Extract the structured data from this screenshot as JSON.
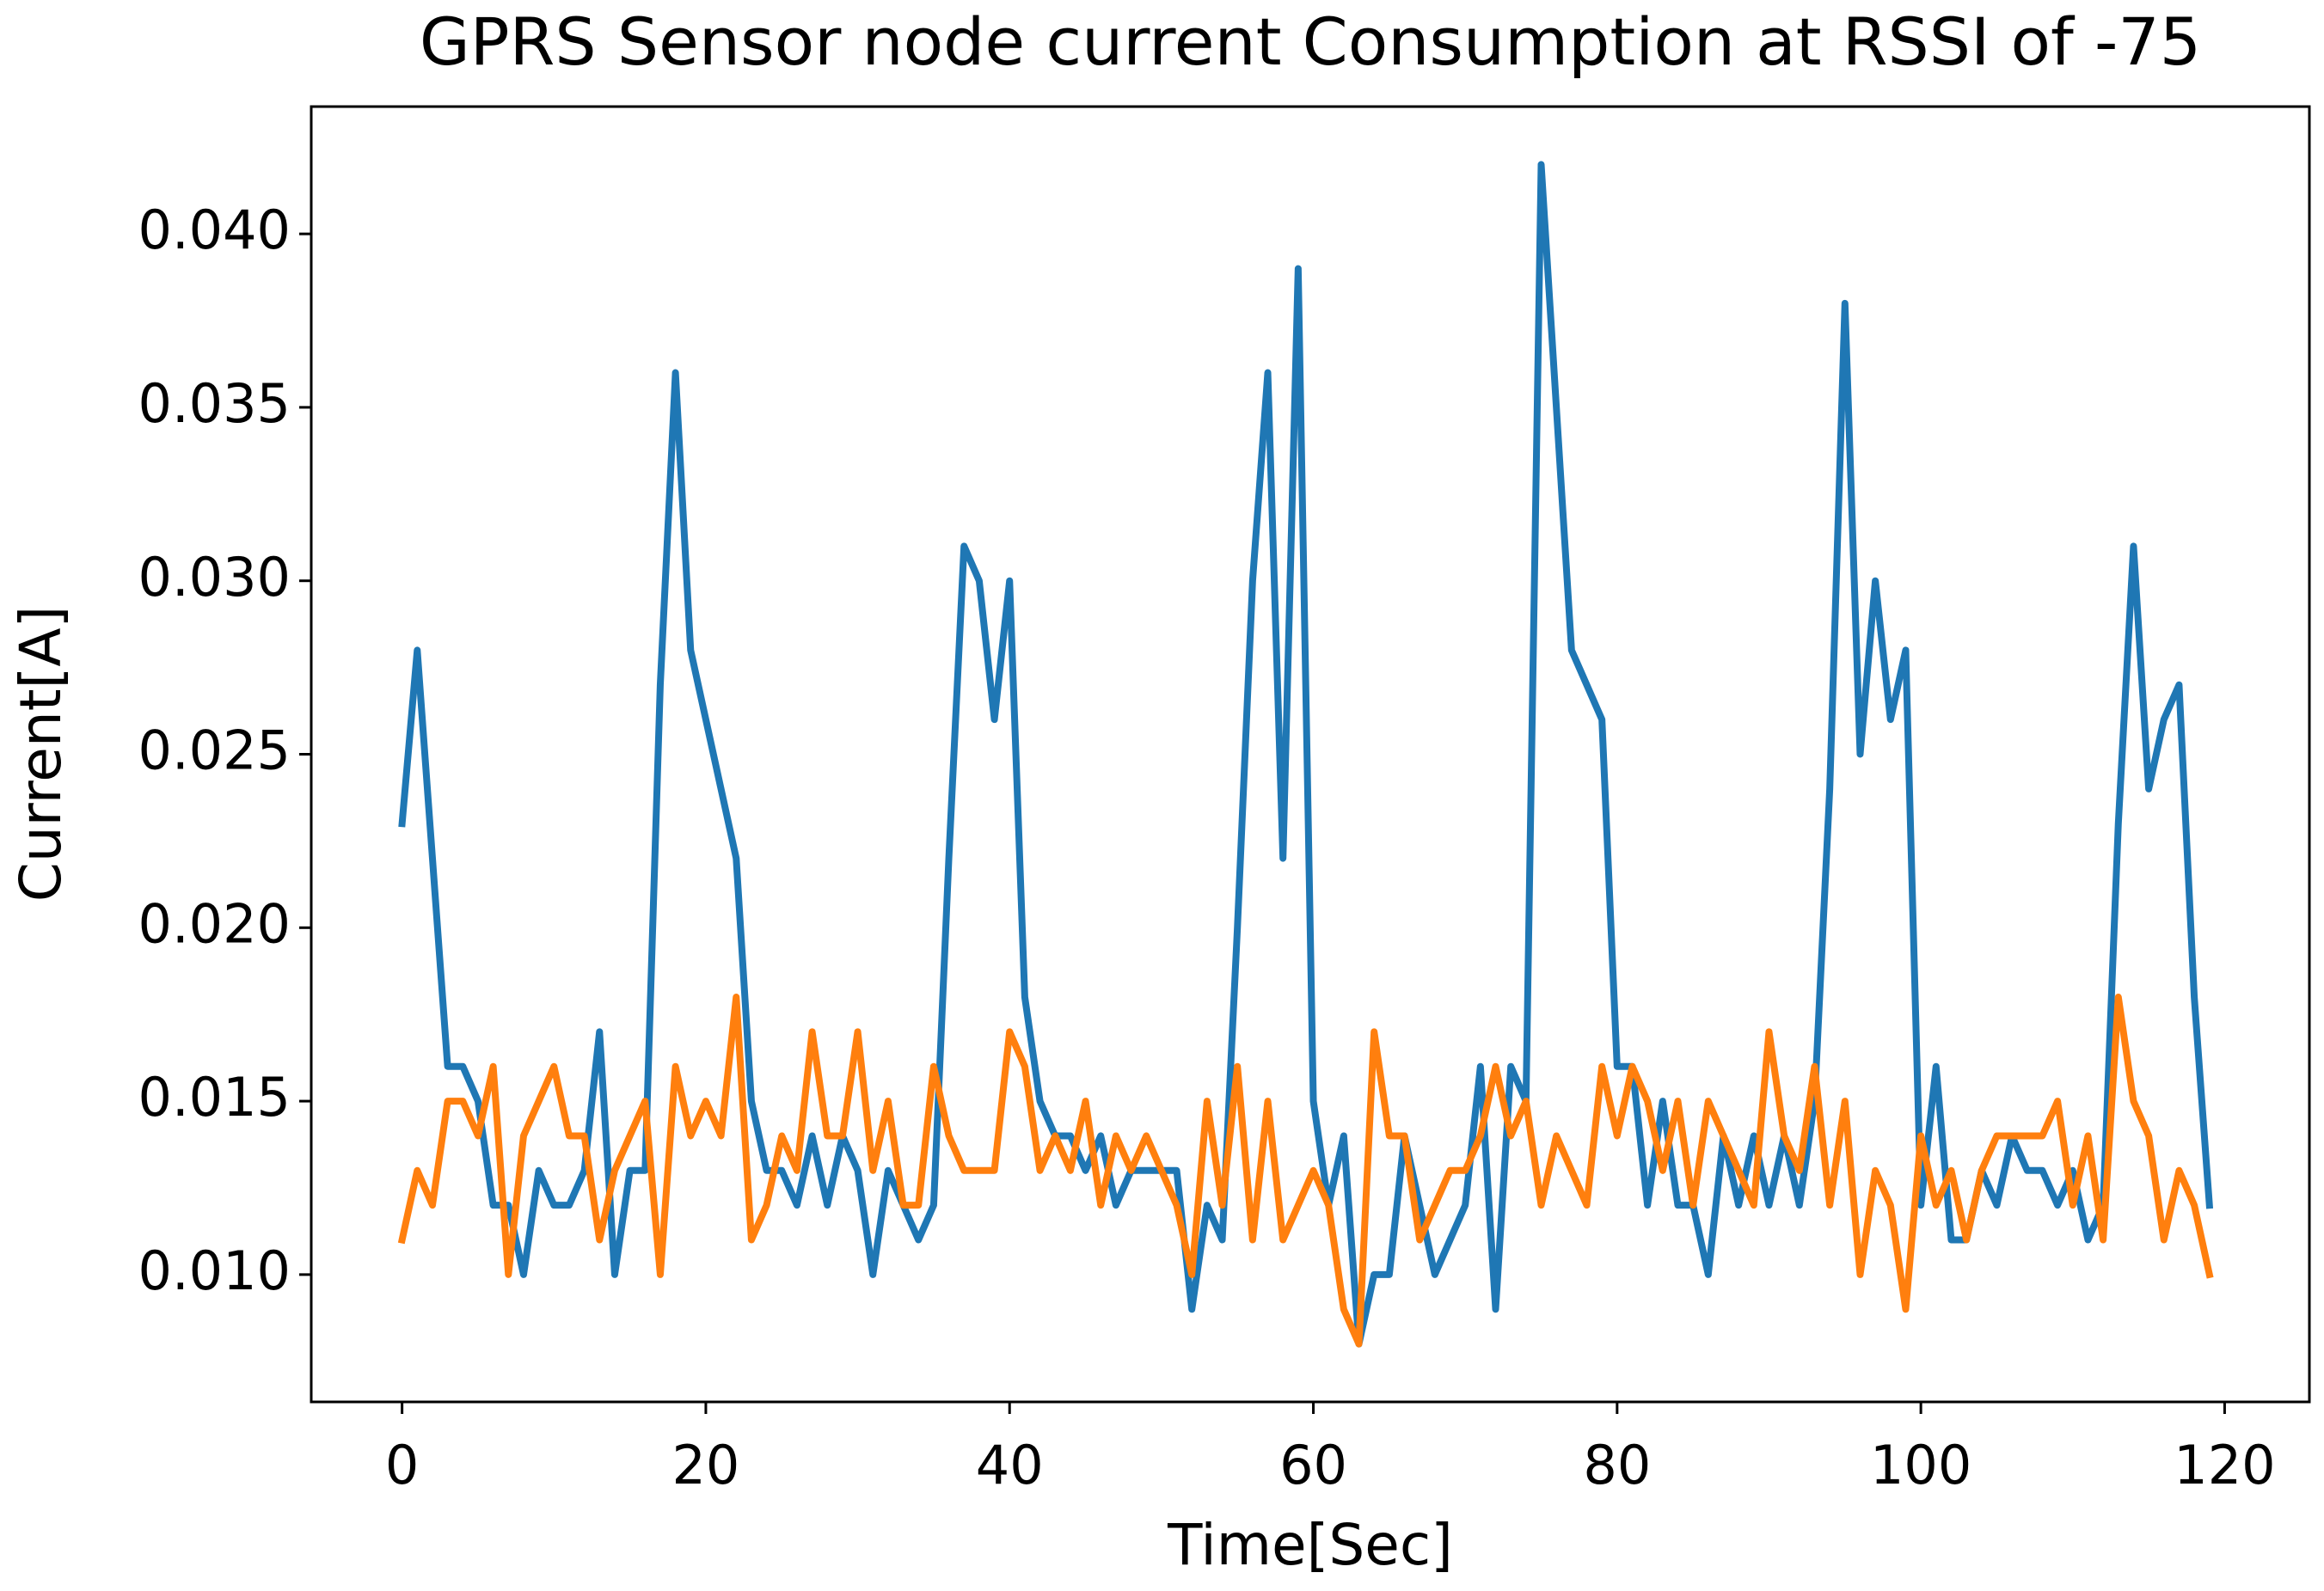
{
  "chart_data": {
    "type": "line",
    "title": "GPRS Sensor node current Consumption at RSSI of -75",
    "xlabel": "Time[Sec]",
    "ylabel": "Current[A]",
    "x": [
      0,
      1,
      2,
      3,
      4,
      5,
      6,
      7,
      8,
      9,
      10,
      11,
      12,
      13,
      14,
      15,
      16,
      17,
      18,
      19,
      20,
      21,
      22,
      23,
      24,
      25,
      26,
      27,
      28,
      29,
      30,
      31,
      32,
      33,
      34,
      35,
      36,
      37,
      38,
      39,
      40,
      41,
      42,
      43,
      44,
      45,
      46,
      47,
      48,
      49,
      50,
      51,
      52,
      53,
      54,
      55,
      56,
      57,
      58,
      59,
      60,
      61,
      62,
      63,
      64,
      65,
      66,
      67,
      68,
      69,
      70,
      71,
      72,
      73,
      74,
      75,
      76,
      77,
      78,
      79,
      80,
      81,
      82,
      83,
      84,
      85,
      86,
      87,
      88,
      89,
      90,
      91,
      92,
      93,
      94,
      95,
      96,
      97,
      98,
      99,
      100,
      101,
      102,
      103,
      104,
      105,
      106,
      107,
      108,
      109,
      110,
      111,
      112,
      113,
      114,
      115,
      116,
      117,
      118,
      119
    ],
    "series": [
      {
        "color": "#1f77b4",
        "values": [
          0.023,
          0.028,
          0.022,
          0.016,
          0.016,
          0.015,
          0.012,
          0.012,
          0.01,
          0.013,
          0.012,
          0.012,
          0.013,
          0.017,
          0.01,
          0.013,
          0.013,
          0.027,
          0.036,
          0.028,
          0.026,
          0.024,
          0.022,
          0.015,
          0.013,
          0.013,
          0.012,
          0.014,
          0.012,
          0.014,
          0.013,
          0.01,
          0.013,
          0.012,
          0.011,
          0.012,
          0.022,
          0.031,
          0.03,
          0.026,
          0.03,
          0.018,
          0.015,
          0.014,
          0.014,
          0.013,
          0.014,
          0.012,
          0.013,
          0.013,
          0.013,
          0.013,
          0.009,
          0.012,
          0.011,
          0.02,
          0.03,
          0.036,
          0.022,
          0.039,
          0.015,
          0.012,
          0.014,
          0.008,
          0.01,
          0.01,
          0.014,
          0.012,
          0.01,
          0.011,
          0.012,
          0.016,
          0.009,
          0.016,
          0.015,
          0.042,
          0.035,
          0.028,
          0.027,
          0.026,
          0.016,
          0.016,
          0.012,
          0.015,
          0.012,
          0.012,
          0.01,
          0.014,
          0.012,
          0.014,
          0.012,
          0.014,
          0.012,
          0.015,
          0.024,
          0.038,
          0.025,
          0.03,
          0.026,
          0.028,
          0.012,
          0.016,
          0.011,
          0.011,
          0.013,
          0.012,
          0.014,
          0.013,
          0.013,
          0.012,
          0.013,
          0.011,
          0.012,
          0.023,
          0.031,
          0.024,
          0.026,
          0.027,
          0.018,
          0.012
        ]
      },
      {
        "color": "#ff7f0e",
        "values": [
          0.011,
          0.013,
          0.012,
          0.015,
          0.015,
          0.014,
          0.016,
          0.01,
          0.014,
          0.015,
          0.016,
          0.014,
          0.014,
          0.011,
          0.013,
          0.014,
          0.015,
          0.01,
          0.016,
          0.014,
          0.015,
          0.014,
          0.018,
          0.011,
          0.012,
          0.014,
          0.013,
          0.017,
          0.014,
          0.014,
          0.017,
          0.013,
          0.015,
          0.012,
          0.012,
          0.016,
          0.014,
          0.013,
          0.013,
          0.013,
          0.017,
          0.016,
          0.013,
          0.014,
          0.013,
          0.015,
          0.012,
          0.014,
          0.013,
          0.014,
          0.013,
          0.012,
          0.01,
          0.015,
          0.012,
          0.016,
          0.011,
          0.015,
          0.011,
          0.012,
          0.013,
          0.012,
          0.009,
          0.008,
          0.017,
          0.014,
          0.014,
          0.011,
          0.012,
          0.013,
          0.013,
          0.014,
          0.016,
          0.014,
          0.015,
          0.012,
          0.014,
          0.013,
          0.012,
          0.016,
          0.014,
          0.016,
          0.015,
          0.013,
          0.015,
          0.012,
          0.015,
          0.014,
          0.013,
          0.012,
          0.017,
          0.014,
          0.013,
          0.016,
          0.012,
          0.015,
          0.01,
          0.013,
          0.012,
          0.009,
          0.014,
          0.012,
          0.013,
          0.011,
          0.013,
          0.014,
          0.014,
          0.014,
          0.014,
          0.015,
          0.012,
          0.014,
          0.011,
          0.018,
          0.015,
          0.014,
          0.011,
          0.013,
          0.012,
          0.01
        ]
      }
    ],
    "xlim": [
      -5.98,
      125.58
    ],
    "ylim": [
      0.00633,
      0.04367
    ],
    "xticks": [
      0,
      20,
      40,
      60,
      80,
      100,
      120
    ],
    "yticks": [
      {
        "value": 0.01,
        "label": "0.010"
      },
      {
        "value": 0.015,
        "label": "0.015"
      },
      {
        "value": 0.02,
        "label": "0.020"
      },
      {
        "value": 0.025,
        "label": "0.025"
      },
      {
        "value": 0.03,
        "label": "0.030"
      },
      {
        "value": 0.035,
        "label": "0.035"
      },
      {
        "value": 0.04,
        "label": "0.040"
      }
    ],
    "grid": false
  }
}
